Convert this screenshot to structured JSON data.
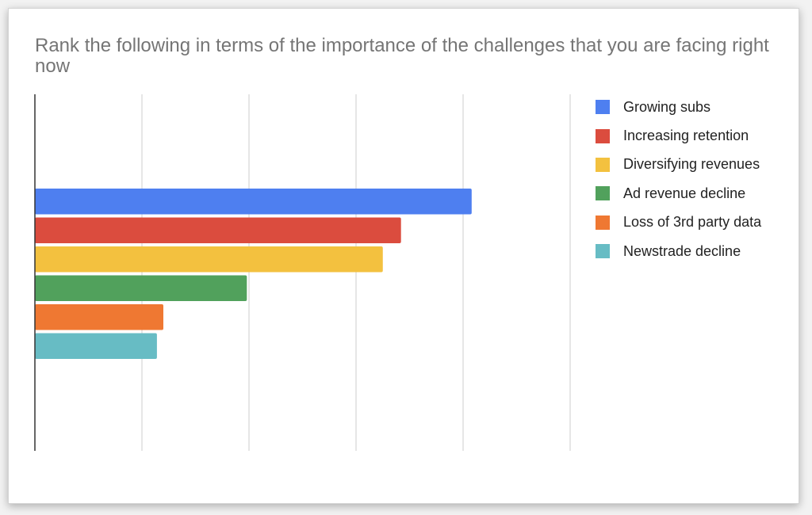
{
  "chart_data": {
    "type": "bar",
    "orientation": "horizontal",
    "title": "Rank the following in terms of the importance of the challenges that you are facing right now",
    "xlabel": "",
    "ylabel": "",
    "xlim": [
      0,
      5
    ],
    "grid": true,
    "legend_position": "right",
    "series": [
      {
        "name": "Growing subs",
        "value": 4.08,
        "color": "#4e7ff0"
      },
      {
        "name": "Increasing retention",
        "value": 3.42,
        "color": "#db4c3e"
      },
      {
        "name": "Diversifying revenues",
        "value": 3.25,
        "color": "#f3c13f"
      },
      {
        "name": "Ad revenue decline",
        "value": 1.98,
        "color": "#51a15c"
      },
      {
        "name": "Loss of 3rd party data",
        "value": 1.2,
        "color": "#ef7832"
      },
      {
        "name": "Newstrade decline",
        "value": 1.14,
        "color": "#67bcc4"
      }
    ]
  }
}
